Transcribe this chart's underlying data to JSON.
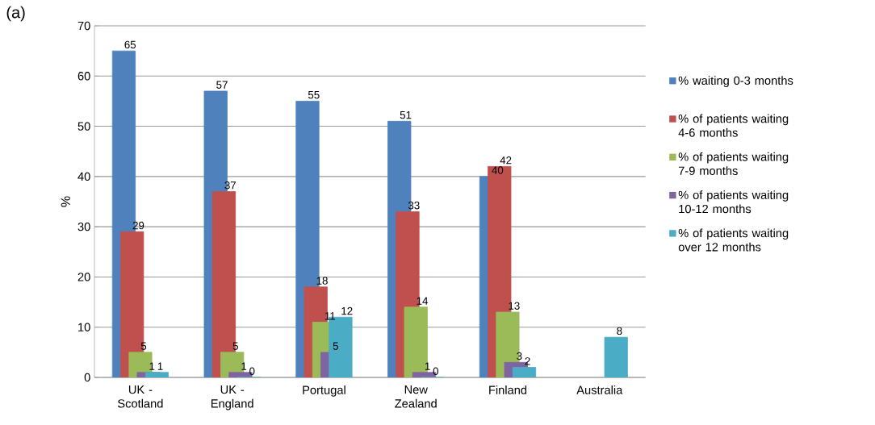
{
  "chart_data": {
    "type": "bar",
    "ylabel": "%",
    "annotations": [
      "(a)"
    ],
    "categories": [
      "UK - Scotland",
      "UK - England",
      "Portugal",
      "New Zealand",
      "Finland",
      "Australia"
    ],
    "series": [
      {
        "name": "% waiting 0-3 months",
        "color": "#4f81bd",
        "values": [
          65,
          57,
          55,
          51,
          40,
          null
        ]
      },
      {
        "name": "% of patients waiting 4-6 months",
        "color": "#c0504d",
        "values": [
          29,
          37,
          18,
          33,
          42,
          null
        ]
      },
      {
        "name": "% of patients waiting 7-9 months",
        "color": "#9bbb59",
        "values": [
          5,
          5,
          11,
          14,
          13,
          null
        ]
      },
      {
        "name": "% of patients waiting 10-12 months",
        "color": "#8064a2",
        "values": [
          1,
          1,
          5,
          1,
          3,
          null
        ]
      },
      {
        "name": "% of patients waiting over 12 months",
        "color": "#4bacc6",
        "values": [
          1,
          0,
          12,
          0,
          2,
          8
        ]
      }
    ],
    "ylim": [
      0,
      70
    ],
    "yticks": [
      0,
      10,
      20,
      30,
      40,
      50,
      60,
      70
    ],
    "grid": "y",
    "legend": "right",
    "data_labels": true
  }
}
